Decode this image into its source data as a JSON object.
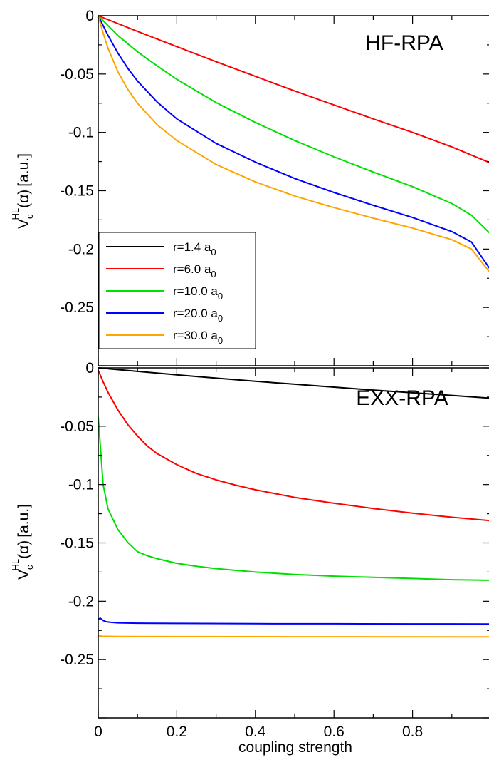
{
  "chart_data": [
    {
      "type": "line",
      "title": "HF-RPA",
      "xlabel": "",
      "ylabel": {
        "main": "V",
        "sub": "c",
        "sup": "HL",
        "arg": "(α)",
        "unit": "[a.u.]"
      },
      "xlim": [
        0,
        1
      ],
      "ylim": [
        -0.3,
        0
      ],
      "yticks": [
        0,
        -0.05,
        -0.1,
        -0.15,
        -0.2,
        -0.25
      ],
      "ytick_labels": [
        "0",
        "-0.05",
        "-0.1",
        "-0.15",
        "-0.2",
        "-0.25"
      ],
      "legend": {
        "position": "bottom-left",
        "entries": [
          {
            "label": "r=1.4 a",
            "sub": "0",
            "color": "#000000"
          },
          {
            "label": "r=6.0 a",
            "sub": "0",
            "color": "#ff0000"
          },
          {
            "label": "r=10.0 a",
            "sub": "0",
            "color": "#00e000"
          },
          {
            "label": "r=20.0 a",
            "sub": "0",
            "color": "#0000ff"
          },
          {
            "label": "r=30.0 a",
            "sub": "0",
            "color": "#ffa500"
          }
        ]
      },
      "series": [
        {
          "name": "r=6.0 a0",
          "color": "#ff0000",
          "x": [
            0,
            0.1,
            0.2,
            0.3,
            0.4,
            0.5,
            0.6,
            0.7,
            0.8,
            0.9,
            1.0
          ],
          "y": [
            0,
            -0.0135,
            -0.0265,
            -0.0395,
            -0.052,
            -0.0645,
            -0.0765,
            -0.0885,
            -0.1,
            -0.1125,
            -0.1265
          ]
        },
        {
          "name": "r=10.0 a0",
          "color": "#00e000",
          "x": [
            0,
            0.05,
            0.1,
            0.15,
            0.2,
            0.3,
            0.4,
            0.5,
            0.6,
            0.7,
            0.8,
            0.9,
            0.95,
            1.0
          ],
          "y": [
            0,
            -0.017,
            -0.031,
            -0.043,
            -0.0545,
            -0.0745,
            -0.0915,
            -0.107,
            -0.121,
            -0.134,
            -0.1465,
            -0.161,
            -0.171,
            -0.1875
          ]
        },
        {
          "name": "r=20.0 a0",
          "color": "#0000ff",
          "x": [
            0,
            0.025,
            0.05,
            0.075,
            0.1,
            0.15,
            0.2,
            0.3,
            0.4,
            0.5,
            0.6,
            0.7,
            0.8,
            0.9,
            0.95,
            1.0
          ],
          "y": [
            0,
            -0.017,
            -0.032,
            -0.045,
            -0.056,
            -0.074,
            -0.0885,
            -0.1095,
            -0.1255,
            -0.1395,
            -0.1515,
            -0.1625,
            -0.173,
            -0.185,
            -0.194,
            -0.2185
          ]
        },
        {
          "name": "r=30.0 a0",
          "color": "#ffa500",
          "x": [
            0,
            0.0125,
            0.025,
            0.05,
            0.075,
            0.1,
            0.15,
            0.2,
            0.3,
            0.4,
            0.5,
            0.6,
            0.7,
            0.8,
            0.9,
            0.95,
            1.0
          ],
          "y": [
            0,
            -0.015,
            -0.028,
            -0.048,
            -0.063,
            -0.075,
            -0.0935,
            -0.107,
            -0.1275,
            -0.1425,
            -0.1545,
            -0.1645,
            -0.1735,
            -0.182,
            -0.192,
            -0.2,
            -0.2215
          ]
        }
      ]
    },
    {
      "type": "line",
      "title": "EXX-RPA",
      "xlabel": "coupling strength",
      "ylabel": {
        "main": "V",
        "sub": "c",
        "sup": "HL",
        "arg": "(α)",
        "unit": "[a.u.]"
      },
      "xlim": [
        0,
        1
      ],
      "ylim": [
        -0.3,
        0
      ],
      "xticks": [
        0,
        0.2,
        0.4,
        0.6,
        0.8
      ],
      "xtick_labels": [
        "0",
        "0.2",
        "0.4",
        "0.6",
        "0.8"
      ],
      "yticks": [
        0,
        -0.05,
        -0.1,
        -0.15,
        -0.2,
        -0.25
      ],
      "ytick_labels": [
        "0",
        "-0.05",
        "-0.1",
        "-0.15",
        "-0.2",
        "-0.25"
      ],
      "series": [
        {
          "name": "r=1.4 a0",
          "color": "#000000",
          "x": [
            0,
            0.1,
            0.2,
            0.3,
            0.4,
            0.5,
            0.6,
            0.7,
            0.8,
            0.9,
            1.0
          ],
          "y": [
            0,
            -0.003,
            -0.006,
            -0.0088,
            -0.0115,
            -0.014,
            -0.0165,
            -0.019,
            -0.0213,
            -0.0236,
            -0.026
          ]
        },
        {
          "name": "r=6.0 a0",
          "color": "#ff0000",
          "x": [
            0,
            0.0125,
            0.025,
            0.05,
            0.075,
            0.1,
            0.125,
            0.15,
            0.2,
            0.25,
            0.3,
            0.35,
            0.4,
            0.5,
            0.6,
            0.7,
            0.8,
            0.9,
            1.0
          ],
          "y": [
            -0.002,
            -0.012,
            -0.021,
            -0.036,
            -0.0485,
            -0.0585,
            -0.067,
            -0.0735,
            -0.083,
            -0.0905,
            -0.096,
            -0.1005,
            -0.1045,
            -0.111,
            -0.116,
            -0.1205,
            -0.1245,
            -0.128,
            -0.131
          ]
        },
        {
          "name": "r=10.0 a0",
          "color": "#00e000",
          "x": [
            0,
            0.0125,
            0.025,
            0.05,
            0.075,
            0.1,
            0.125,
            0.15,
            0.2,
            0.25,
            0.3,
            0.4,
            0.5,
            0.6,
            0.7,
            0.8,
            0.9,
            1.0
          ],
          "y": [
            -0.042,
            -0.1,
            -0.121,
            -0.1385,
            -0.1495,
            -0.1575,
            -0.161,
            -0.1635,
            -0.1675,
            -0.17,
            -0.172,
            -0.175,
            -0.177,
            -0.1785,
            -0.1795,
            -0.1805,
            -0.1815,
            -0.182
          ]
        },
        {
          "name": "r=20.0 a0",
          "color": "#0000ff",
          "x": [
            0,
            0.005,
            0.0125,
            0.02,
            0.03,
            0.05,
            0.1,
            0.2,
            0.4,
            0.6,
            0.8,
            1.0
          ],
          "y": [
            -0.2155,
            -0.2145,
            -0.2165,
            -0.2175,
            -0.218,
            -0.2185,
            -0.2188,
            -0.219,
            -0.2192,
            -0.2193,
            -0.2194,
            -0.2195
          ]
        },
        {
          "name": "r=30.0 a0",
          "color": "#ffa500",
          "x": [
            0,
            0.01,
            0.05,
            0.2,
            0.5,
            1.0
          ],
          "y": [
            -0.2295,
            -0.23,
            -0.2302,
            -0.2303,
            -0.2304,
            -0.2305
          ]
        }
      ]
    }
  ]
}
